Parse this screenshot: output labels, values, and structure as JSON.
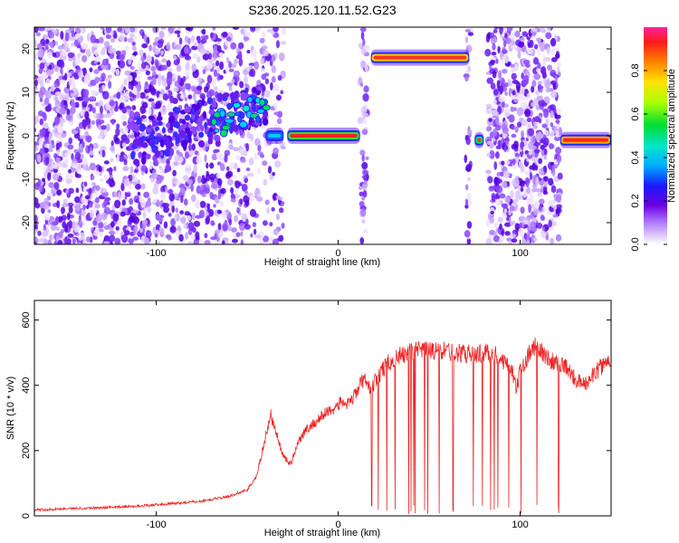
{
  "page": {
    "title": "S236.2025.120.11.52.G23"
  },
  "chart_data": [
    {
      "type": "heatmap",
      "xlabel": "Height of straight line (km)",
      "ylabel": "Frequency (Hz)",
      "xlim": [
        -167,
        150
      ],
      "ylim": [
        -25,
        25
      ],
      "xticks": [
        -100,
        0,
        100
      ],
      "yticks": [
        -20,
        -10,
        0,
        10,
        20
      ],
      "colorbar": {
        "label": "Normalized spectral amplitude",
        "range": [
          0,
          1
        ],
        "ticks": [
          "0.0",
          "0.2",
          "0.4",
          "0.6",
          "0.8"
        ]
      },
      "features": [
        {
          "x_start": -40,
          "x_end": -30,
          "freq": 0,
          "amplitude": 0.3
        },
        {
          "x_start": -28,
          "x_end": 12,
          "freq": 0,
          "amplitude": 0.75
        },
        {
          "x_start": 18,
          "x_end": 72,
          "freq": 18,
          "amplitude": 0.85
        },
        {
          "x_start": 75,
          "x_end": 80,
          "freq": -1,
          "amplitude": 0.45
        },
        {
          "x_start": 122,
          "x_end": 150,
          "freq": -1,
          "amplitude": 0.95
        }
      ]
    },
    {
      "type": "line",
      "xlabel": "Height of straight line (km)",
      "ylabel": "SNR (10 * v/v)",
      "xlim": [
        -167,
        150
      ],
      "ylim": [
        0,
        660
      ],
      "xticks": [
        -100,
        0,
        100
      ],
      "yticks": [
        0,
        200,
        400,
        600
      ],
      "series": [
        {
          "color": "#ee2222",
          "x": [
            -167,
            -150,
            -130,
            -110,
            -90,
            -75,
            -60,
            -50,
            -45,
            -40,
            -37,
            -34,
            -30,
            -26,
            -22,
            -18,
            -14,
            -10,
            -6,
            -2,
            2,
            6,
            10,
            14,
            18,
            22,
            26,
            30,
            34,
            38,
            45,
            55,
            65,
            75,
            85,
            95,
            98,
            100,
            104,
            108,
            112,
            116,
            120,
            125,
            130,
            135,
            140,
            145,
            150
          ],
          "y": [
            18,
            22,
            25,
            30,
            38,
            45,
            60,
            80,
            120,
            240,
            310,
            250,
            180,
            160,
            230,
            260,
            280,
            300,
            320,
            330,
            350,
            340,
            380,
            420,
            390,
            430,
            460,
            480,
            490,
            500,
            505,
            505,
            500,
            495,
            500,
            460,
            380,
            450,
            490,
            520,
            500,
            480,
            470,
            460,
            420,
            400,
            430,
            460,
            480
          ]
        }
      ]
    }
  ]
}
